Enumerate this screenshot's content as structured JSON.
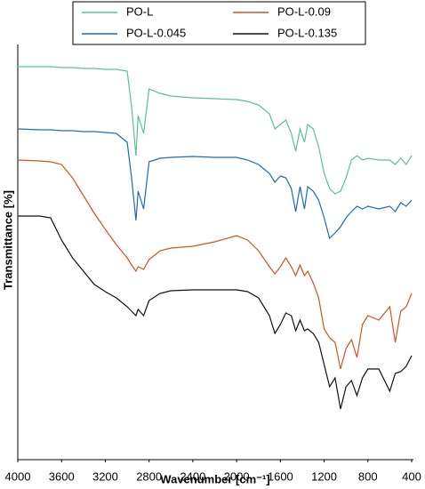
{
  "chart_data": {
    "type": "line",
    "xlabel": "Wavenumber [cm⁻¹]",
    "ylabel": "Transmittance [%]",
    "xlim": [
      4000,
      400
    ],
    "xticks": [
      4000,
      3600,
      3200,
      2800,
      2400,
      2000,
      1600,
      1200,
      800,
      400
    ],
    "ylim": [
      0,
      467
    ],
    "legend": "top",
    "x": [
      4000,
      3800,
      3700,
      3600,
      3500,
      3400,
      3300,
      3200,
      3100,
      3000,
      2960,
      2920,
      2900,
      2850,
      2800,
      2700,
      2600,
      2400,
      2200,
      2000,
      1900,
      1800,
      1700,
      1650,
      1600,
      1550,
      1500,
      1460,
      1420,
      1380,
      1350,
      1300,
      1250,
      1200,
      1150,
      1100,
      1050,
      1000,
      950,
      900,
      850,
      800,
      700,
      600,
      550,
      500,
      450,
      400
    ],
    "series": [
      {
        "name": "PO-L",
        "color": "#5dbf99",
        "values": [
          442,
          442,
          442,
          441,
          441,
          440,
          440,
          439,
          439,
          437,
          397,
          342,
          387,
          367,
          417,
          412,
          409,
          407,
          406,
          405,
          403,
          399,
          389,
          372,
          377,
          382,
          367,
          347,
          372,
          357,
          377,
          372,
          352,
          322,
          305,
          299,
          302,
          317,
          337,
          342,
          337,
          339,
          337,
          337,
          332,
          339,
          332,
          342
        ]
      },
      {
        "name": "PO-L-0.09",
        "color": "#d4531f",
        "values": [
          337,
          336,
          335,
          332,
          317,
          297,
          277,
          259,
          242,
          227,
          219,
          212,
          217,
          214,
          225,
          235,
          238,
          240,
          245,
          252,
          247,
          235,
          217,
          209,
          217,
          227,
          217,
          207,
          219,
          207,
          212,
          199,
          182,
          147,
          137,
          132,
          102,
          125,
          135,
          115,
          152,
          162,
          157,
          172,
          132,
          167,
          172,
          187
        ]
      },
      {
        "name": "PO-L-0.045",
        "color": "#1f6db0",
        "values": [
          372,
          371,
          371,
          370,
          370,
          369,
          369,
          368,
          367,
          357,
          317,
          269,
          302,
          282,
          335,
          339,
          340,
          341,
          340,
          340,
          337,
          332,
          322,
          312,
          319,
          317,
          305,
          279,
          307,
          282,
          307,
          302,
          292,
          272,
          249,
          255,
          262,
          272,
          279,
          285,
          282,
          285,
          282,
          285,
          279,
          289,
          285,
          292
        ]
      },
      {
        "name": "PO-L-0.135",
        "color": "#111111",
        "values": [
          274,
          274,
          272,
          247,
          227,
          212,
          197,
          189,
          182,
          172,
          167,
          162,
          169,
          162,
          179,
          187,
          190,
          191,
          191,
          191,
          189,
          182,
          162,
          142,
          152,
          165,
          162,
          145,
          157,
          145,
          147,
          142,
          132,
          107,
          82,
          92,
          57,
          82,
          89,
          72,
          92,
          102,
          102,
          77,
          97,
          99,
          105,
          117
        ]
      }
    ]
  }
}
